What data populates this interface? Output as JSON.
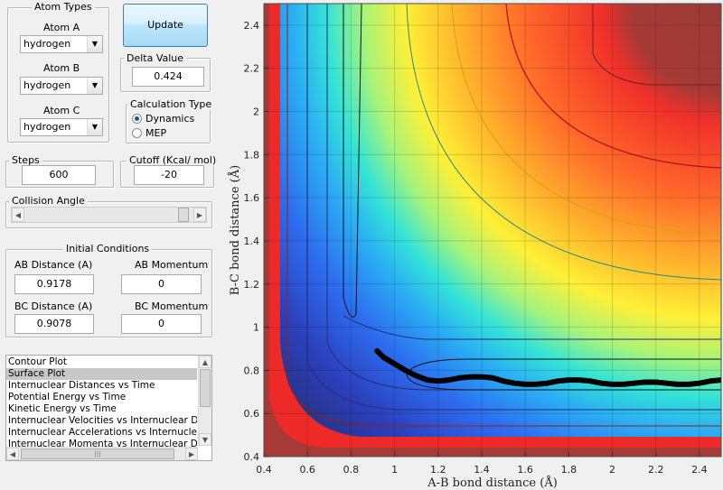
{
  "atom_types": {
    "title": "Atom Types",
    "atom_a": {
      "label": "Atom A",
      "value": "hydrogen"
    },
    "atom_b": {
      "label": "Atom B",
      "value": "hydrogen"
    },
    "atom_c": {
      "label": "Atom C",
      "value": "hydrogen"
    }
  },
  "update_button": "Update",
  "delta": {
    "title": "Delta Value",
    "value": "0.424"
  },
  "calc_type": {
    "title": "Calculation Type",
    "options": [
      "Dynamics",
      "MEP"
    ],
    "selected": "Dynamics"
  },
  "steps": {
    "title": "Steps",
    "value": "600"
  },
  "cutoff": {
    "title": "Cutoff (Kcal/ mol)",
    "value": "-20"
  },
  "collision": {
    "title": "Collision Angle",
    "slider_fraction": 0.97
  },
  "initial": {
    "title": "Initial Conditions",
    "ab_distance": {
      "label": "AB Distance (A)",
      "value": "0.9178"
    },
    "ab_momentum": {
      "label": "AB Momentum",
      "value": "0"
    },
    "bc_distance": {
      "label": "BC Distance (A)",
      "value": "0.9078"
    },
    "bc_momentum": {
      "label": "BC Momentum",
      "value": "0"
    }
  },
  "plot_list": {
    "items": [
      "Contour Plot",
      "Surface Plot",
      "Internuclear Distances vs Time",
      "Potential Energy vs Time",
      "Kinetic Energy vs Time",
      "Internuclear Velocities vs Internuclear Distance",
      "Internuclear Accelerations vs Internuclear Distance",
      "Internuclear Momenta vs Internuclear Distance"
    ],
    "selected_index": 1
  },
  "chart_data": {
    "type": "heatmap",
    "title": "",
    "xlabel": "A-B bond distance (Å)",
    "ylabel": "B-C bond distance (Å)",
    "xlim": [
      0.4,
      2.5
    ],
    "ylim": [
      0.4,
      2.5
    ],
    "xticks": [
      "0.4",
      "0.6",
      "0.8",
      "1",
      "1.2",
      "1.4",
      "1.6",
      "1.8",
      "2",
      "2.2",
      "2.4"
    ],
    "yticks": [
      "0.4",
      "0.6",
      "0.8",
      "1",
      "1.2",
      "1.4",
      "1.6",
      "1.8",
      "2",
      "2.2",
      "2.4"
    ],
    "grid": true,
    "colormap": "jet",
    "trajectory": {
      "x": [
        0.92,
        0.95,
        1.0,
        1.05,
        1.1,
        1.15,
        1.2,
        1.25,
        1.3,
        1.35,
        1.4,
        1.45,
        1.5,
        1.55,
        1.6,
        1.65,
        1.7,
        1.75,
        1.8,
        1.85,
        1.9,
        1.95,
        2.0,
        2.05,
        2.1,
        2.15,
        2.2,
        2.25,
        2.3,
        2.35,
        2.4,
        2.45,
        2.5
      ],
      "y": [
        0.89,
        0.86,
        0.83,
        0.8,
        0.775,
        0.755,
        0.75,
        0.755,
        0.765,
        0.77,
        0.77,
        0.765,
        0.75,
        0.74,
        0.735,
        0.735,
        0.74,
        0.75,
        0.755,
        0.755,
        0.75,
        0.74,
        0.735,
        0.735,
        0.74,
        0.745,
        0.745,
        0.74,
        0.735,
        0.735,
        0.74,
        0.75,
        0.755
      ]
    }
  }
}
